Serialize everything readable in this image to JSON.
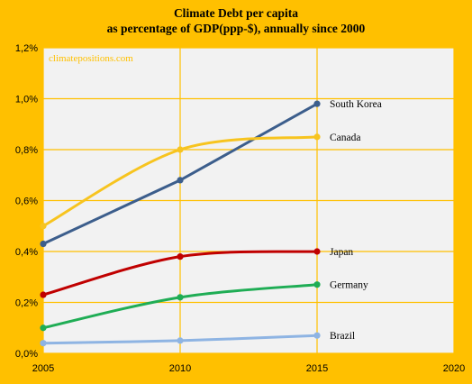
{
  "chart_data": {
    "type": "line",
    "title": "Climate Debt per capita",
    "subtitle": "as percentage of GDP(ppp-$), annually since 2000",
    "watermark": "climatepositions.com",
    "x": [
      2005,
      2010,
      2015
    ],
    "xlim": [
      2005,
      2020
    ],
    "x_ticks": [
      "2005",
      "2010",
      "2015",
      "2020"
    ],
    "ylim": [
      0,
      1.2
    ],
    "y_ticks": [
      "0,0%",
      "0,2%",
      "0,4%",
      "0,6%",
      "0,8%",
      "1,0%",
      "1,2%"
    ],
    "y_tick_values": [
      0,
      0.2,
      0.4,
      0.6,
      0.8,
      1.0,
      1.2
    ],
    "grid": true,
    "colors": {
      "background": "#FFC000",
      "plot_area": "#F2F2F2",
      "grid": "#FFC000"
    },
    "series": [
      {
        "name": "South Korea",
        "values": [
          0.43,
          0.68,
          0.98
        ],
        "color": "#3C5E8C",
        "smooth": false
      },
      {
        "name": "Canada",
        "values": [
          0.5,
          0.8,
          0.85
        ],
        "color": "#F7C41F",
        "smooth": true
      },
      {
        "name": "Japan",
        "values": [
          0.23,
          0.38,
          0.4
        ],
        "color": "#C00000",
        "smooth": true
      },
      {
        "name": "Germany",
        "values": [
          0.1,
          0.22,
          0.27
        ],
        "color": "#1FAD55",
        "smooth": true
      },
      {
        "name": "Brazil",
        "values": [
          0.04,
          0.05,
          0.07
        ],
        "color": "#8EB4E3",
        "smooth": true
      }
    ]
  }
}
